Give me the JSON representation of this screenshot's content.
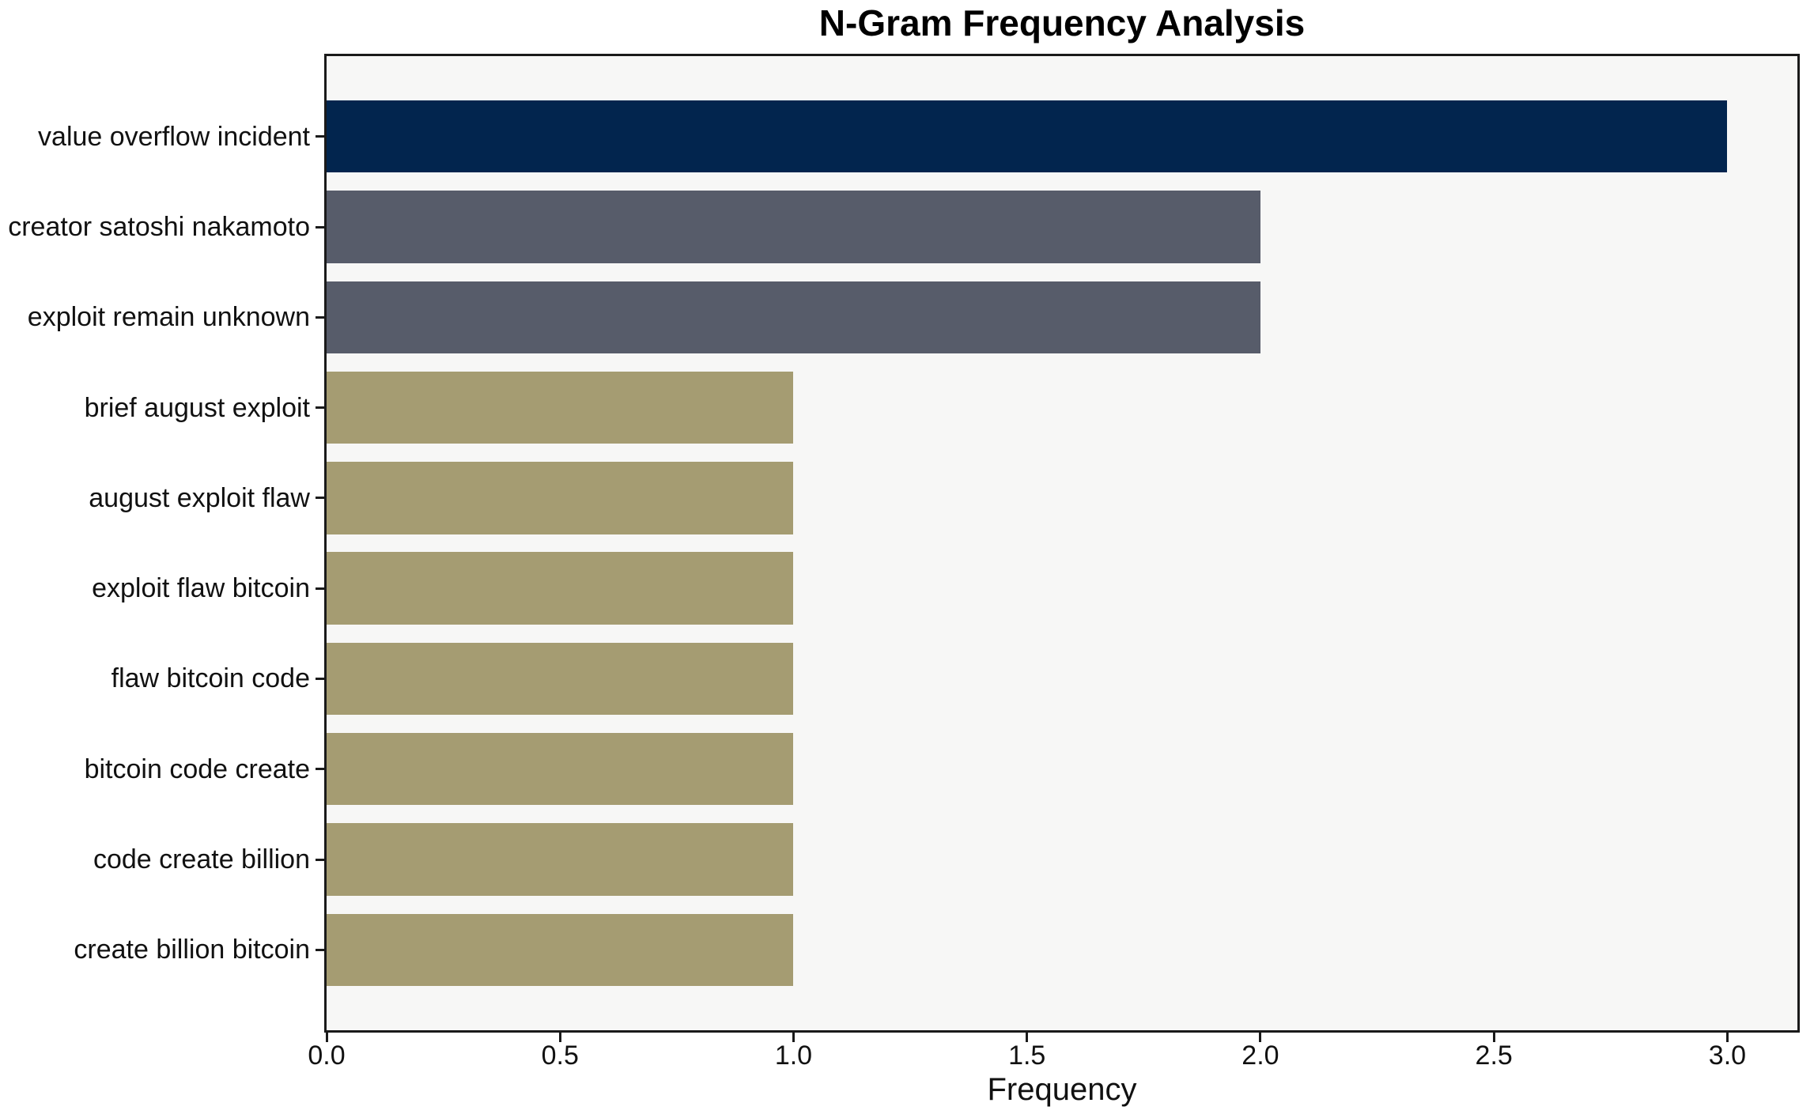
{
  "figure": {
    "background": "#ffffff",
    "text_color": "#111111",
    "spine_color": "#1a1a1a",
    "plot_background": "#f7f7f6"
  },
  "chart_data": {
    "type": "bar",
    "orientation": "horizontal",
    "title": "N-Gram Frequency Analysis",
    "xlabel": "Frequency",
    "ylabel": "",
    "categories": [
      "value overflow incident",
      "creator satoshi nakamoto",
      "exploit remain unknown",
      "brief august exploit",
      "august exploit flaw",
      "exploit flaw bitcoin",
      "flaw bitcoin code",
      "bitcoin code create",
      "code create billion",
      "create billion bitcoin"
    ],
    "values": [
      3,
      2,
      2,
      1,
      1,
      1,
      1,
      1,
      1,
      1
    ],
    "bar_colors": [
      "#02254e",
      "#575c6a",
      "#575c6a",
      "#a59c72",
      "#a59c72",
      "#a59c72",
      "#a59c72",
      "#a59c72",
      "#a59c72",
      "#a59c72"
    ],
    "xticks": [
      "0.0",
      "0.5",
      "1.0",
      "1.5",
      "2.0",
      "2.5",
      "3.0"
    ],
    "xtick_values": [
      0,
      0.5,
      1.0,
      1.5,
      2.0,
      2.5,
      3.0
    ],
    "xlim": [
      0,
      3.15
    ],
    "grid": false,
    "legend": null
  }
}
